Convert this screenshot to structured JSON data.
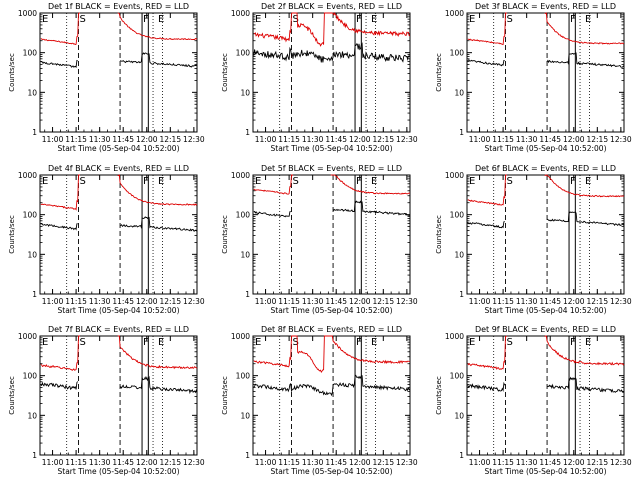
{
  "colors": {
    "events": "#000000",
    "lld": "#dd0000",
    "background": "#ffffff"
  },
  "shared": {
    "ylabel": "Counts/sec",
    "xlabel": "Start Time (05-Sep-04 10:52:00)",
    "y_ticks": [
      "1",
      "10",
      "100",
      "1000"
    ],
    "x_ticks": [
      "11:00",
      "11:15",
      "11:30",
      "11:45",
      "12:00",
      "12:15",
      "12:30"
    ],
    "markers": {
      "S": "S",
      "F": "F",
      "E": "E"
    }
  },
  "chart_data": [
    {
      "type": "line",
      "title": "Det 1f BLACK = Events, RED = LLD",
      "yscale": "log",
      "ylim": [
        1,
        1000
      ],
      "xlim": [
        "10:52",
        "12:32"
      ],
      "grid": false,
      "x_ticks": [
        "11:00",
        "11:15",
        "11:30",
        "11:45",
        "12:00",
        "12:15",
        "12:30"
      ],
      "events_level_before": 50,
      "events_level_after": 45,
      "lld_level_before": 190,
      "lld_level_after": 220,
      "noise": "low",
      "gap_on_saa": true
    },
    {
      "type": "line",
      "title": "Det 2f BLACK = Events, RED = LLD",
      "yscale": "log",
      "ylim": [
        1,
        1000
      ],
      "xlim": [
        "10:52",
        "12:32"
      ],
      "grid": false,
      "x_ticks": [
        "11:00",
        "11:15",
        "11:30",
        "11:45",
        "12:00",
        "12:15",
        "12:30"
      ],
      "events_level_before": 90,
      "events_level_after": 70,
      "lld_level_before": 250,
      "lld_level_after": 300,
      "noise": "high",
      "gap_on_saa": false
    },
    {
      "type": "line",
      "title": "Det 3f BLACK = Events, RED = LLD",
      "yscale": "log",
      "ylim": [
        1,
        1000
      ],
      "xlim": [
        "10:52",
        "12:32"
      ],
      "grid": false,
      "x_ticks": [
        "11:00",
        "11:15",
        "11:30",
        "11:45",
        "12:00",
        "12:15",
        "12:30"
      ],
      "events_level_before": 55,
      "events_level_after": 45,
      "lld_level_before": 190,
      "lld_level_after": 170,
      "noise": "low",
      "gap_on_saa": true
    },
    {
      "type": "line",
      "title": "Det 4f BLACK = Events, RED = LLD",
      "yscale": "log",
      "ylim": [
        1,
        1000
      ],
      "xlim": [
        "10:52",
        "12:32"
      ],
      "grid": false,
      "x_ticks": [
        "11:00",
        "11:15",
        "11:30",
        "11:45",
        "12:00",
        "12:15",
        "12:30"
      ],
      "events_level_before": 50,
      "events_level_after": 40,
      "lld_level_before": 160,
      "lld_level_after": 180,
      "noise": "low",
      "gap_on_saa": true
    },
    {
      "type": "line",
      "title": "Det 5f BLACK = Events, RED = LLD",
      "yscale": "log",
      "ylim": [
        1,
        1000
      ],
      "xlim": [
        "10:52",
        "12:32"
      ],
      "grid": false,
      "x_ticks": [
        "11:00",
        "11:15",
        "11:30",
        "11:45",
        "12:00",
        "12:15",
        "12:30"
      ],
      "events_level_before": 100,
      "events_level_after": 100,
      "lld_level_before": 380,
      "lld_level_after": 340,
      "noise": "low",
      "gap_on_saa": true
    },
    {
      "type": "line",
      "title": "Det 6f BLACK = Events, RED = LLD",
      "yscale": "log",
      "ylim": [
        1,
        1000
      ],
      "xlim": [
        "10:52",
        "12:32"
      ],
      "grid": false,
      "x_ticks": [
        "11:00",
        "11:15",
        "11:30",
        "11:45",
        "12:00",
        "12:15",
        "12:30"
      ],
      "events_level_before": 55,
      "events_level_after": 55,
      "lld_level_before": 200,
      "lld_level_after": 290,
      "noise": "low",
      "gap_on_saa": true
    },
    {
      "type": "line",
      "title": "Det 7f BLACK = Events, RED = LLD",
      "yscale": "log",
      "ylim": [
        1,
        1000
      ],
      "xlim": [
        "10:52",
        "12:32"
      ],
      "grid": false,
      "x_ticks": [
        "11:00",
        "11:15",
        "11:30",
        "11:45",
        "12:00",
        "12:15",
        "12:30"
      ],
      "events_level_before": 55,
      "events_level_after": 40,
      "lld_level_before": 160,
      "lld_level_after": 160,
      "noise": "medium",
      "gap_on_saa": true
    },
    {
      "type": "line",
      "title": "Det 8f BLACK = Events, RED = LLD",
      "yscale": "log",
      "ylim": [
        1,
        1000
      ],
      "xlim": [
        "10:52",
        "12:32"
      ],
      "grid": false,
      "x_ticks": [
        "11:00",
        "11:15",
        "11:30",
        "11:45",
        "12:00",
        "12:15",
        "12:30"
      ],
      "events_level_before": 50,
      "events_level_after": 45,
      "lld_level_before": 200,
      "lld_level_after": 220,
      "noise": "medium",
      "gap_on_saa": false
    },
    {
      "type": "line",
      "title": "Det 9f BLACK = Events, RED = LLD",
      "yscale": "log",
      "ylim": [
        1,
        1000
      ],
      "xlim": [
        "10:52",
        "12:32"
      ],
      "grid": false,
      "x_ticks": [
        "11:00",
        "11:15",
        "11:30",
        "11:45",
        "12:00",
        "12:15",
        "12:30"
      ],
      "events_level_before": 50,
      "events_level_after": 40,
      "lld_level_before": 170,
      "lld_level_after": 200,
      "noise": "medium",
      "gap_on_saa": true
    }
  ]
}
